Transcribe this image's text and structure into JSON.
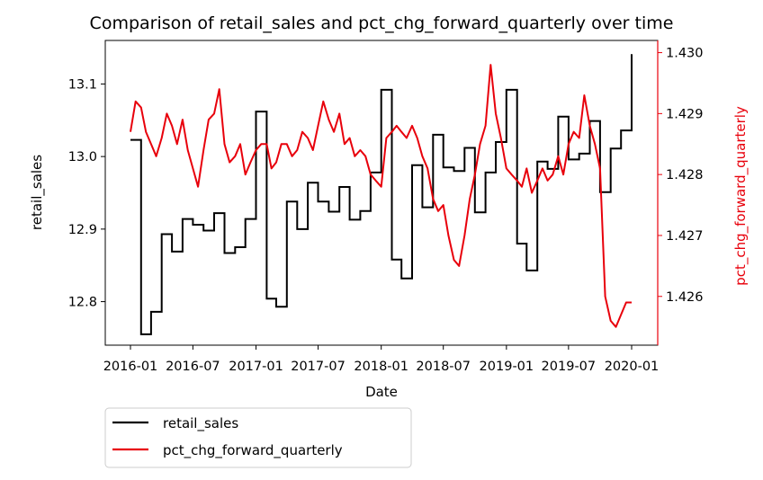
{
  "chart_data": {
    "type": "line",
    "title": "Comparison of retail_sales and pct_chg_forward_quarterly over time",
    "xlabel": "Date",
    "ylabel_left": "retail_sales",
    "ylabel_right": "pct_chg_forward_quarterly",
    "x_ticks": [
      "2016-01",
      "2016-07",
      "2017-01",
      "2017-07",
      "2018-01",
      "2018-07",
      "2019-01",
      "2019-07",
      "2020-01"
    ],
    "ylim_left": [
      12.74,
      13.16
    ],
    "y_ticks_left": [
      "12.8",
      "12.9",
      "13.0",
      "13.1"
    ],
    "ylim_right": [
      1.4252,
      1.4302
    ],
    "y_ticks_right": [
      "1.426",
      "1.427",
      "1.428",
      "1.429",
      "1.430"
    ],
    "legend_position": "below-left",
    "colors": {
      "retail_sales": "#000000",
      "pct_chg_forward_quarterly": "#e8000b"
    },
    "series": [
      {
        "name": "retail_sales",
        "axis": "left",
        "x": [
          "2016-01-01",
          "2016-02-01",
          "2016-03-01",
          "2016-04-01",
          "2016-05-01",
          "2016-06-01",
          "2016-07-01",
          "2016-08-01",
          "2016-09-01",
          "2016-10-01",
          "2016-11-01",
          "2016-12-01",
          "2017-01-01",
          "2017-02-01",
          "2017-03-01",
          "2017-04-01",
          "2017-05-01",
          "2017-06-01",
          "2017-07-01",
          "2017-08-01",
          "2017-09-01",
          "2017-10-01",
          "2017-11-01",
          "2017-12-01",
          "2018-01-01",
          "2018-02-01",
          "2018-03-01",
          "2018-04-01",
          "2018-05-01",
          "2018-06-01",
          "2018-07-01",
          "2018-08-01",
          "2018-09-01",
          "2018-10-01",
          "2018-11-01",
          "2018-12-01",
          "2019-01-01",
          "2019-02-01",
          "2019-03-01",
          "2019-04-01",
          "2019-05-01",
          "2019-06-01",
          "2019-07-01",
          "2019-08-01",
          "2019-09-01",
          "2019-10-01",
          "2019-11-01",
          "2019-12-01",
          "2020-01-01"
        ],
        "values": [
          13.023,
          12.755,
          12.786,
          12.893,
          12.869,
          12.914,
          12.906,
          12.898,
          12.922,
          12.867,
          12.875,
          12.914,
          13.062,
          12.804,
          12.793,
          12.938,
          12.9,
          12.964,
          12.938,
          12.924,
          12.958,
          12.913,
          12.925,
          12.978,
          13.092,
          12.858,
          12.832,
          12.988,
          12.93,
          13.03,
          12.985,
          12.98,
          13.012,
          12.923,
          12.978,
          13.02,
          13.092,
          12.88,
          12.843,
          12.993,
          12.983,
          13.055,
          12.996,
          13.004,
          13.049,
          12.951,
          13.011,
          13.036,
          13.141
        ]
      },
      {
        "name": "pct_chg_forward_quarterly",
        "axis": "right",
        "x": [
          "2016-01-01",
          "2016-01-16",
          "2016-02-01",
          "2016-02-15",
          "2016-03-01",
          "2016-03-16",
          "2016-04-01",
          "2016-04-16",
          "2016-05-01",
          "2016-05-16",
          "2016-06-01",
          "2016-06-16",
          "2016-07-01",
          "2016-07-16",
          "2016-08-01",
          "2016-08-16",
          "2016-09-01",
          "2016-09-16",
          "2016-10-01",
          "2016-10-16",
          "2016-11-01",
          "2016-11-16",
          "2016-12-01",
          "2016-12-16",
          "2017-01-01",
          "2017-01-16",
          "2017-02-01",
          "2017-02-15",
          "2017-03-01",
          "2017-03-16",
          "2017-04-01",
          "2017-04-16",
          "2017-05-01",
          "2017-05-16",
          "2017-06-01",
          "2017-06-16",
          "2017-07-01",
          "2017-07-16",
          "2017-08-01",
          "2017-08-16",
          "2017-09-01",
          "2017-09-16",
          "2017-10-01",
          "2017-10-16",
          "2017-11-01",
          "2017-11-16",
          "2017-12-01",
          "2017-12-16",
          "2018-01-01",
          "2018-01-16",
          "2018-02-01",
          "2018-02-15",
          "2018-03-01",
          "2018-03-16",
          "2018-04-01",
          "2018-04-16",
          "2018-05-01",
          "2018-05-16",
          "2018-06-01",
          "2018-06-16",
          "2018-07-01",
          "2018-07-16",
          "2018-08-01",
          "2018-08-16",
          "2018-09-01",
          "2018-09-16",
          "2018-10-01",
          "2018-10-16",
          "2018-11-01",
          "2018-11-16",
          "2018-12-01",
          "2018-12-16",
          "2019-01-01",
          "2019-01-16",
          "2019-02-01",
          "2019-02-15",
          "2019-03-01",
          "2019-03-16",
          "2019-04-01",
          "2019-04-16",
          "2019-05-01",
          "2019-05-16",
          "2019-06-01",
          "2019-06-16",
          "2019-07-01",
          "2019-07-16",
          "2019-08-01",
          "2019-08-16",
          "2019-09-01",
          "2019-09-16",
          "2019-10-01",
          "2019-10-16",
          "2019-11-01",
          "2019-11-16",
          "2019-12-01",
          "2019-12-16",
          "2020-01-01"
        ],
        "values": [
          1.4287,
          1.4292,
          1.4291,
          1.4287,
          1.4285,
          1.4283,
          1.4286,
          1.429,
          1.4288,
          1.4285,
          1.4289,
          1.4284,
          1.4281,
          1.4278,
          1.4284,
          1.4289,
          1.429,
          1.4294,
          1.4285,
          1.4282,
          1.4283,
          1.4285,
          1.428,
          1.4282,
          1.4284,
          1.4285,
          1.4285,
          1.4281,
          1.4282,
          1.4285,
          1.4285,
          1.4283,
          1.4284,
          1.4287,
          1.4286,
          1.4284,
          1.4288,
          1.4292,
          1.4289,
          1.4287,
          1.429,
          1.4285,
          1.4286,
          1.4283,
          1.4284,
          1.4283,
          1.428,
          1.4279,
          1.4278,
          1.4286,
          1.4287,
          1.4288,
          1.4287,
          1.4286,
          1.4288,
          1.4286,
          1.4283,
          1.4281,
          1.4276,
          1.4274,
          1.4275,
          1.427,
          1.4266,
          1.4265,
          1.427,
          1.4276,
          1.428,
          1.4285,
          1.4288,
          1.4298,
          1.429,
          1.4286,
          1.4281,
          1.428,
          1.4279,
          1.4278,
          1.4281,
          1.4277,
          1.4279,
          1.4281,
          1.4279,
          1.428,
          1.4283,
          1.428,
          1.4285,
          1.4287,
          1.4286,
          1.4293,
          1.4288,
          1.4285,
          1.4281,
          1.426,
          1.4256,
          1.4255,
          1.4257,
          1.4259,
          1.4259
        ]
      }
    ]
  }
}
